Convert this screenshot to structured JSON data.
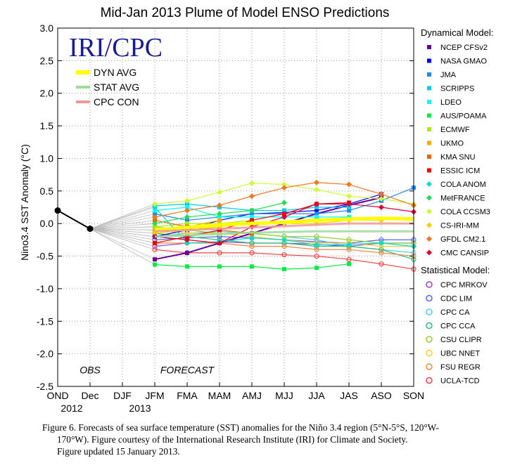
{
  "chart_data": {
    "type": "line",
    "title": "Mid-Jan 2013 Plume of Model ENSO Predictions",
    "ylabel": "Nino3.4 SST Anomaly (°C)",
    "xlabel": "",
    "ylim": [
      -2.5,
      3.0
    ],
    "y_ticks": [
      3.0,
      2.5,
      2.0,
      1.5,
      1.0,
      0.5,
      0.0,
      -0.5,
      -1.0,
      -1.5,
      -2.0,
      -2.5
    ],
    "y_tick_labels": [
      "3.0",
      "2.5",
      "2.0",
      "1.5",
      "1.0",
      "0.5",
      "0.0",
      "-0.5",
      "-1.0",
      "-1.5",
      "-2.0",
      "-2.5"
    ],
    "x_categories": [
      "OND",
      "Dec",
      "DJF",
      "JFM",
      "FMA",
      "MAM",
      "AMJ",
      "MJJ",
      "JJA",
      "JAS",
      "ASO",
      "SON"
    ],
    "x_year_labels": [
      {
        "index": 0,
        "text": "2012"
      },
      {
        "index": 2,
        "text": "2013"
      }
    ],
    "grid": "dotted",
    "logo_text": "IRI/CPC",
    "region_labels": [
      {
        "text": "OBS",
        "x": 1.0,
        "y": -2.3
      },
      {
        "text": "FORECAST",
        "x": 4.0,
        "y": -2.3
      }
    ],
    "observed": {
      "x": [
        0,
        1
      ],
      "y": [
        0.2,
        -0.08
      ]
    },
    "averages": [
      {
        "name": "DYN AVG",
        "color": "#ffff00",
        "values": [
          -0.1,
          -0.06,
          -0.02,
          0.0,
          0.02,
          0.05,
          0.07,
          0.08,
          0.07
        ]
      },
      {
        "name": "STAT AVG",
        "color": "#99dd99",
        "values": [
          -0.2,
          -0.18,
          -0.16,
          -0.14,
          -0.13,
          -0.12,
          -0.12,
          -0.12,
          -0.12
        ]
      },
      {
        "name": "CPC CON",
        "color": "#ee9999",
        "values": [
          -0.12,
          -0.1,
          -0.08,
          -0.06,
          -0.04,
          -0.02,
          0.0,
          0.0,
          0.0
        ]
      }
    ],
    "dynamical_legend_title": "Dynamical Model:",
    "statistical_legend_title": "Statistical Model:",
    "dynamical_models": [
      {
        "name": "NCEP CFSv2",
        "color": "#660099",
        "marker": "square",
        "values": [
          -0.55,
          -0.45,
          -0.3,
          -0.15,
          0.0,
          0.15,
          0.28,
          0.4,
          null
        ]
      },
      {
        "name": "NASA GMAO",
        "color": "#0000ee",
        "marker": "square",
        "values": [
          -0.2,
          -0.1,
          0.05,
          0.15,
          0.17,
          0.2,
          0.3,
          0.45,
          null
        ]
      },
      {
        "name": "JMA",
        "color": "#2288ee",
        "marker": "square",
        "values": [
          0.15,
          0.05,
          0.1,
          0.15,
          0.15,
          0.15,
          0.2,
          0.35,
          0.55
        ]
      },
      {
        "name": "SCRIPPS",
        "color": "#00ccee",
        "marker": "square",
        "values": [
          0.27,
          0.3,
          0.25,
          0.2,
          0.2,
          0.25,
          0.25,
          null,
          null
        ]
      },
      {
        "name": "LDEO",
        "color": "#00ffff",
        "marker": "square",
        "values": [
          0.2,
          0.25,
          0.1,
          0.1,
          0.1,
          0.1,
          0.1,
          null,
          null
        ]
      },
      {
        "name": "AUS/POAMA",
        "color": "#00ee44",
        "marker": "square",
        "values": [
          -0.63,
          -0.66,
          -0.66,
          -0.66,
          -0.7,
          -0.68,
          -0.62,
          null,
          null
        ]
      },
      {
        "name": "ECMWF",
        "color": "#aaee00",
        "marker": "square",
        "values": [
          -0.05,
          0.0,
          0.0,
          0.05,
          null,
          null,
          null,
          null,
          null
        ]
      },
      {
        "name": "UKMO",
        "color": "#ffaa00",
        "marker": "square",
        "values": [
          -0.1,
          -0.05,
          0.05,
          null,
          null,
          null,
          null,
          null,
          null
        ]
      },
      {
        "name": "KMA SNU",
        "color": "#ee6600",
        "marker": "square",
        "values": [
          0.05,
          -0.05,
          -0.1,
          -0.15,
          null,
          null,
          null,
          null,
          null
        ]
      },
      {
        "name": "ESSIC ICM",
        "color": "#ee0000",
        "marker": "square",
        "values": [
          -0.3,
          -0.2,
          -0.1,
          0.05,
          0.15,
          0.3,
          0.32,
          null,
          null
        ]
      },
      {
        "name": "COLA ANOM",
        "color": "#00ddcc",
        "marker": "diamond",
        "values": [
          0.25,
          -0.3,
          -0.28,
          -0.22,
          -0.25,
          -0.33,
          -0.32,
          -0.3,
          -0.35
        ]
      },
      {
        "name": "MetFRANCE",
        "color": "#22dd55",
        "marker": "diamond",
        "values": [
          0.0,
          0.1,
          0.15,
          0.2,
          0.32,
          null,
          null,
          null,
          null
        ]
      },
      {
        "name": "COLA CCSM3",
        "color": "#ccff33",
        "marker": "diamond",
        "values": [
          0.3,
          0.35,
          0.48,
          0.62,
          0.6,
          0.52,
          0.42,
          0.38,
          0.3
        ]
      },
      {
        "name": "CS-IRI-MM",
        "color": "#ffcc00",
        "marker": "diamond",
        "values": [
          -0.15,
          -0.1,
          -0.05,
          0.0,
          0.0,
          0.0,
          0.05,
          0.05,
          null
        ]
      },
      {
        "name": "GFDL CM2.1",
        "color": "#ee7722",
        "marker": "diamond",
        "values": [
          0.1,
          0.2,
          0.28,
          0.42,
          0.55,
          0.63,
          0.6,
          0.45,
          0.28
        ]
      },
      {
        "name": "CMC CANSIP",
        "color": "#dd0033",
        "marker": "diamond",
        "values": [
          -0.2,
          -0.25,
          -0.3,
          -0.05,
          0.1,
          0.3,
          0.3,
          0.25,
          0.18
        ]
      }
    ],
    "statistical_models": [
      {
        "name": "CPC MRKOV",
        "color": "#9944cc",
        "values": [
          -0.35,
          -0.3,
          -0.28,
          -0.3,
          -0.3,
          -0.32,
          -0.35,
          -0.3,
          -0.3
        ]
      },
      {
        "name": "CDC LIM",
        "color": "#5566ee",
        "values": [
          -0.25,
          -0.22,
          -0.2,
          -0.22,
          -0.25,
          -0.28,
          -0.3,
          -0.25,
          -0.25
        ]
      },
      {
        "name": "CPC CA",
        "color": "#55ccee",
        "values": [
          -0.2,
          -0.15,
          -0.12,
          -0.15,
          -0.2,
          -0.25,
          -0.35,
          -0.4,
          -0.45
        ]
      },
      {
        "name": "CPC CCA",
        "color": "#33bb77",
        "values": [
          -0.15,
          -0.2,
          -0.25,
          -0.3,
          -0.3,
          -0.35,
          -0.35,
          -0.4,
          -0.55
        ]
      },
      {
        "name": "CSU CLIPR",
        "color": "#99cc33",
        "values": [
          -0.05,
          -0.1,
          -0.15,
          -0.15,
          -0.2,
          -0.2,
          -0.25,
          -0.3,
          -0.3
        ]
      },
      {
        "name": "UBC NNET",
        "color": "#ffcc33",
        "values": [
          -0.1,
          -0.15,
          -0.15,
          -0.2,
          -0.25,
          -0.3,
          -0.3,
          -0.35,
          -0.35
        ]
      },
      {
        "name": "FSU REGR",
        "color": "#ee8844",
        "values": [
          -0.3,
          -0.3,
          -0.3,
          -0.35,
          -0.35,
          -0.4,
          -0.4,
          -0.45,
          -0.5
        ]
      },
      {
        "name": "UCLA-TCD",
        "color": "#ee4444",
        "values": [
          -0.4,
          -0.45,
          -0.45,
          -0.45,
          -0.48,
          -0.5,
          -0.55,
          -0.62,
          -0.7
        ]
      }
    ]
  },
  "caption": {
    "lines": [
      "Figure 6. Forecasts of sea surface temperature (SST) anomalies  for the Niño 3.4 region  (5°N-5°S, 120°W-",
      "170°W).  Figure courtesy of the International Research Institute (IRI) for Climate and Society.",
      "Figure updated 15 January 2013."
    ]
  }
}
